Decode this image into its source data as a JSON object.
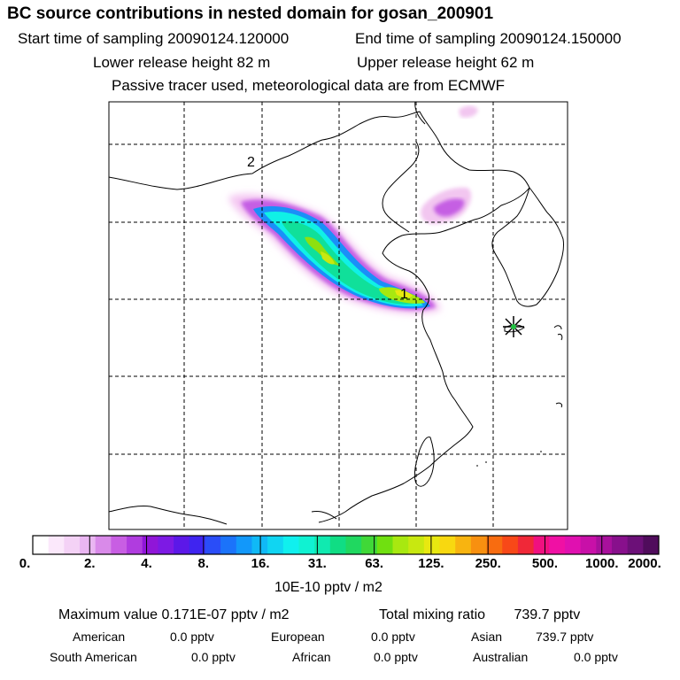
{
  "header": {
    "title": "BC  source contributions in nested domain for gosan_200901",
    "start_label": "Start time of sampling 20090124.120000",
    "end_label": "End time of sampling 20090124.150000",
    "lower_label": "Lower release height   82 m",
    "upper_label": "Upper release height   62 m",
    "note": "Passive tracer used, meteorological data are from ECMWF"
  },
  "map": {
    "markers": [
      {
        "label": "2"
      },
      {
        "label": "1"
      }
    ],
    "receptor_icon": "star-icon"
  },
  "colorbar": {
    "ticks": [
      "0.",
      "2.",
      "4.",
      "8.",
      "16.",
      "31.",
      "63.",
      "125.",
      "250.",
      "500.",
      "1000.",
      "2000."
    ],
    "colors": [
      "#ffffff",
      "#fbe8fb",
      "#f4d2f6",
      "#eab6f2",
      "#d98ae9",
      "#c85ee3",
      "#b03cdf",
      "#9016d8",
      "#7d1ae4",
      "#5c18e8",
      "#3f24f0",
      "#2a4df8",
      "#1b73fa",
      "#1298fa",
      "#10b9f6",
      "#10d5f2",
      "#10f0ee",
      "#10f2d2",
      "#10eab0",
      "#10dd84",
      "#20d860",
      "#40d838",
      "#70e010",
      "#a8e810",
      "#c8e810",
      "#e8e810",
      "#f8d810",
      "#f8b410",
      "#f89010",
      "#f86c10",
      "#f84818",
      "#f02838",
      "#f01080",
      "#f010a4",
      "#e010b0",
      "#c810a8",
      "#a8109c",
      "#88108c",
      "#6c1078",
      "#500c5c"
    ],
    "units": "10E-10 pptv / m2"
  },
  "summary": {
    "max_label": "Maximum value  0.171E-07 pptv / m2",
    "mixing_label": "Total mixing ratio",
    "mixing_value": "739.7 pptv",
    "regions": [
      {
        "name": "American",
        "value": "0.0 pptv"
      },
      {
        "name": "European",
        "value": "0.0 pptv"
      },
      {
        "name": "Asian",
        "value": "739.7 pptv"
      },
      {
        "name": "South American",
        "value": "0.0 pptv"
      },
      {
        "name": "African",
        "value": "0.0 pptv"
      },
      {
        "name": "Australian",
        "value": "0.0 pptv"
      }
    ]
  }
}
